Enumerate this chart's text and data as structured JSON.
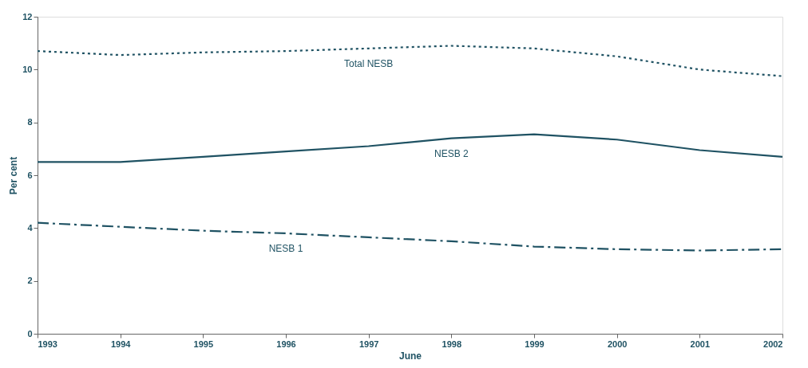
{
  "chart_data": {
    "type": "line",
    "xlabel": "June",
    "ylabel": "Per cent",
    "x": [
      1993,
      1994,
      1995,
      1996,
      1997,
      1998,
      1999,
      2000,
      2001,
      2002
    ],
    "xlim": [
      1993,
      2002
    ],
    "xticks": [
      1993,
      1994,
      1995,
      1996,
      1997,
      1998,
      1999,
      2000,
      2001,
      2002
    ],
    "ylim": [
      0,
      12
    ],
    "yticks": [
      0,
      2,
      4,
      6,
      8,
      10,
      12
    ],
    "grid": false,
    "marker": "none",
    "series": [
      {
        "name": "Total NESB",
        "color": "#1f5263",
        "line_style": "dotted",
        "values": [
          10.7,
          10.55,
          10.65,
          10.7,
          10.8,
          10.9,
          10.8,
          10.5,
          10.0,
          9.75
        ]
      },
      {
        "name": "NESB 2",
        "color": "#1f5263",
        "line_style": "solid",
        "values": [
          6.5,
          6.5,
          6.7,
          6.9,
          7.1,
          7.4,
          7.55,
          7.35,
          6.95,
          6.7
        ]
      },
      {
        "name": "NESB 1",
        "color": "#1f5263",
        "line_style": "dashed",
        "values": [
          4.2,
          4.05,
          3.9,
          3.8,
          3.65,
          3.5,
          3.3,
          3.2,
          3.15,
          3.2
        ]
      }
    ]
  }
}
